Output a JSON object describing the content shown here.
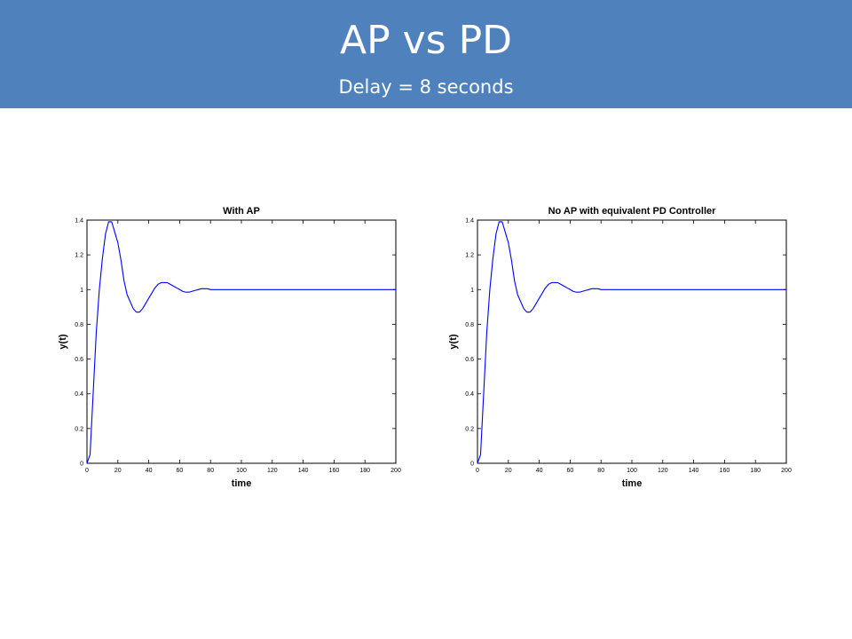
{
  "header": {
    "title": "AP vs PD",
    "subtitle": "Delay = 8 seconds",
    "background_color": "#4f81bd",
    "text_color": "#ffffff"
  },
  "chart_data": [
    {
      "type": "line",
      "title": "With AP",
      "xlabel": "time",
      "ylabel": "y(t)",
      "xlim": [
        0,
        200
      ],
      "ylim": [
        0,
        1.4
      ],
      "xticks": [
        0,
        20,
        40,
        60,
        80,
        100,
        120,
        140,
        160,
        180,
        200
      ],
      "yticks": [
        0,
        0.2,
        0.4,
        0.6,
        0.8,
        1,
        1.2,
        1.4
      ],
      "grid": false,
      "series": [
        {
          "color": "#0000ff",
          "x": [
            0,
            2,
            4,
            6,
            8,
            10,
            12,
            14,
            16,
            18,
            20,
            22,
            24,
            26,
            28,
            30,
            32,
            34,
            36,
            38,
            40,
            42,
            44,
            46,
            48,
            50,
            52,
            54,
            56,
            58,
            60,
            62,
            64,
            66,
            68,
            70,
            72,
            74,
            76,
            78,
            80,
            84,
            88,
            92,
            96,
            100,
            105,
            110,
            120,
            140,
            160,
            180,
            200
          ],
          "y": [
            0,
            0.05,
            0.4,
            0.75,
            1.0,
            1.18,
            1.32,
            1.39,
            1.39,
            1.33,
            1.27,
            1.17,
            1.05,
            0.97,
            0.93,
            0.89,
            0.87,
            0.87,
            0.89,
            0.92,
            0.95,
            0.98,
            1.01,
            1.03,
            1.04,
            1.04,
            1.04,
            1.03,
            1.02,
            1.01,
            1.0,
            0.99,
            0.985,
            0.985,
            0.99,
            0.995,
            1.0,
            1.005,
            1.005,
            1.005,
            1.0,
            1.0,
            1.0,
            1.0,
            1.0,
            1.0,
            1.0,
            1.0,
            1.0,
            1.0,
            1.0,
            1.0,
            1.0
          ]
        }
      ]
    },
    {
      "type": "line",
      "title": "No AP with equivalent PD Controller",
      "xlabel": "time",
      "ylabel": "y(t)",
      "xlim": [
        0,
        200
      ],
      "ylim": [
        0,
        1.4
      ],
      "xticks": [
        0,
        20,
        40,
        60,
        80,
        100,
        120,
        140,
        160,
        180,
        200
      ],
      "yticks": [
        0,
        0.2,
        0.4,
        0.6,
        0.8,
        1,
        1.2,
        1.4
      ],
      "grid": false,
      "series": [
        {
          "color": "#0000ff",
          "x": [
            0,
            2,
            4,
            6,
            8,
            10,
            12,
            14,
            16,
            18,
            20,
            22,
            24,
            26,
            28,
            30,
            32,
            34,
            36,
            38,
            40,
            42,
            44,
            46,
            48,
            50,
            52,
            54,
            56,
            58,
            60,
            62,
            64,
            66,
            68,
            70,
            72,
            74,
            76,
            78,
            80,
            84,
            88,
            92,
            96,
            100,
            105,
            110,
            120,
            140,
            160,
            180,
            200
          ],
          "y": [
            0,
            0.05,
            0.4,
            0.75,
            1.0,
            1.18,
            1.32,
            1.39,
            1.39,
            1.33,
            1.27,
            1.17,
            1.05,
            0.97,
            0.93,
            0.89,
            0.87,
            0.87,
            0.89,
            0.92,
            0.95,
            0.98,
            1.01,
            1.03,
            1.04,
            1.04,
            1.04,
            1.03,
            1.02,
            1.01,
            1.0,
            0.99,
            0.985,
            0.985,
            0.99,
            0.995,
            1.0,
            1.005,
            1.005,
            1.005,
            1.0,
            1.0,
            1.0,
            1.0,
            1.0,
            1.0,
            1.0,
            1.0,
            1.0,
            1.0,
            1.0,
            1.0,
            1.0
          ]
        }
      ]
    }
  ]
}
